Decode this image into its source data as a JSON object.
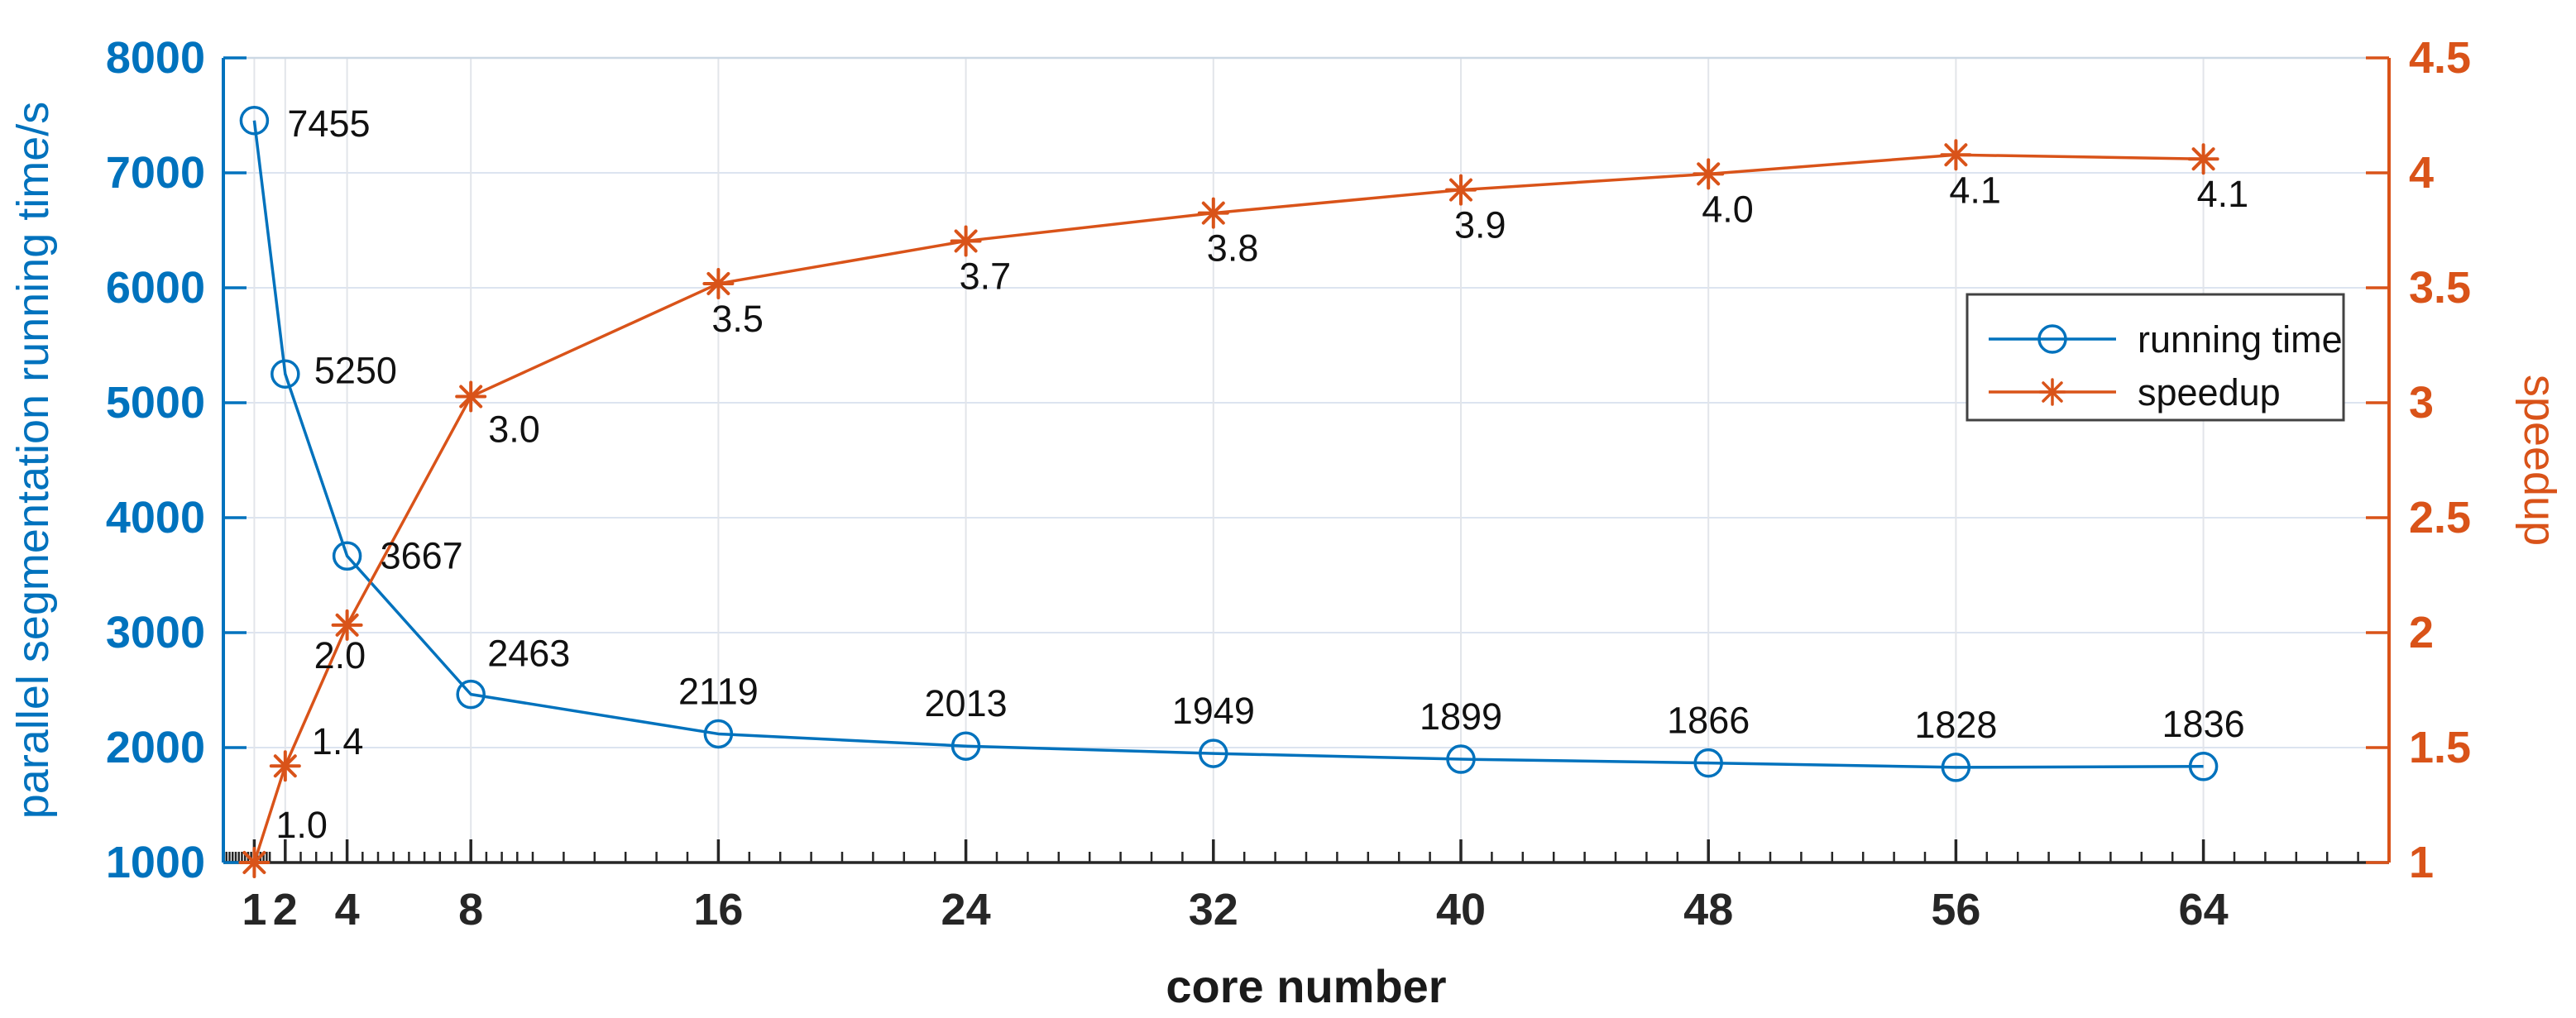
{
  "chart_data": {
    "type": "line",
    "title": "",
    "xlabel": "core number",
    "x": [
      1,
      2,
      4,
      8,
      16,
      24,
      32,
      40,
      48,
      56,
      64
    ],
    "xlim": [
      0,
      70
    ],
    "x_ticks": [
      1,
      2,
      4,
      8,
      16,
      24,
      32,
      40,
      48,
      56,
      64
    ],
    "grid": true,
    "legend_position": "right-center",
    "series": [
      {
        "name": "running time",
        "yaxis": "left",
        "color": "#0072BD",
        "marker": "circle",
        "values": [
          7455,
          5250,
          3667,
          2463,
          2119,
          2013,
          1949,
          1899,
          1866,
          1828,
          1836
        ],
        "labels": [
          "7455",
          "5250",
          "3667",
          "2463",
          "2119",
          "2013",
          "1949",
          "1899",
          "1866",
          "1828",
          "1836"
        ]
      },
      {
        "name": "speedup",
        "yaxis": "right",
        "color": "#D95319",
        "marker": "asterisk",
        "values": [
          1.0,
          1.4,
          2.0,
          3.0,
          3.5,
          3.7,
          3.8,
          3.9,
          4.0,
          4.1,
          4.1
        ],
        "labels": [
          "1.0",
          "1.4",
          "2.0",
          "3.0",
          "3.5",
          "3.7",
          "3.8",
          "3.9",
          "4.0",
          "4.1",
          "4.1"
        ]
      }
    ],
    "left_axis": {
      "label": "parallel segmentation running time/s",
      "color": "#0072BD",
      "lim": [
        1000,
        8000
      ],
      "ticks": [
        1000,
        2000,
        3000,
        4000,
        5000,
        6000,
        7000,
        8000
      ]
    },
    "right_axis": {
      "label": "speedup",
      "color": "#D95319",
      "lim": [
        1,
        4.5
      ],
      "ticks": [
        1,
        1.5,
        2,
        2.5,
        3,
        3.5,
        4,
        4.5
      ]
    },
    "colors": {
      "grid_horizontal": "#dce4f0",
      "grid_vertical": "#e2e5ea",
      "x_axis": "#262626",
      "top_spine": "#ccd8e4",
      "data_label": "#111111",
      "legend_border": "#424242"
    }
  }
}
